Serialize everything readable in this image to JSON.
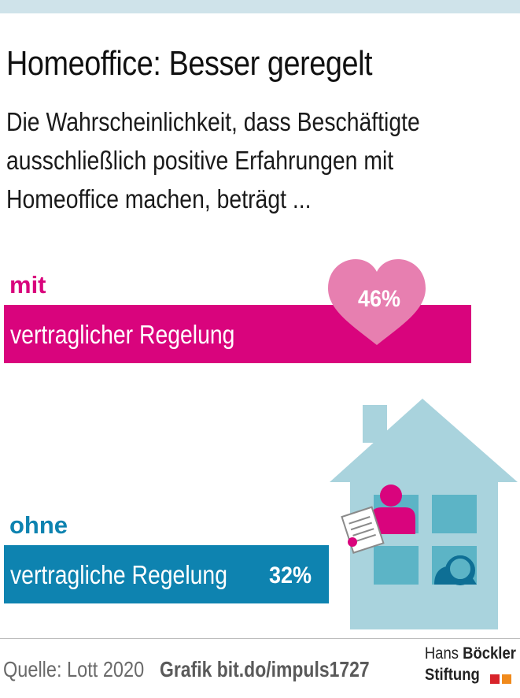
{
  "header": {
    "title": "Homeoffice: Besser geregelt",
    "subtitle_lines": [
      "Die Wahrscheinlichkeit, dass Beschäftigte",
      "ausschließlich positive Erfahrungen mit",
      "Homeoffice machen, beträgt ..."
    ]
  },
  "chart_data": {
    "type": "bar",
    "orientation": "horizontal",
    "unit": "%",
    "categories": [
      {
        "prefix": "mit",
        "label": "vertraglicher Regelung"
      },
      {
        "prefix": "ohne",
        "label": "vertragliche Regelung"
      }
    ],
    "values": [
      46,
      32
    ],
    "value_labels": [
      "46%",
      "32%"
    ],
    "colors": [
      "#d9047d",
      "#0e83b0"
    ],
    "heart_color": "#e77fb0",
    "house_color": "#a9d3dd",
    "window_color": "#5cb4c6",
    "figure_color": "#d9047d",
    "figure_dark_color": "#0e6f95",
    "xlim": [
      0,
      50
    ],
    "grid": false
  },
  "footer": {
    "source": "Quelle: Lott 2020",
    "grafik": "Grafik bit.do/impuls1727",
    "logo_line1_regular": "Hans",
    "logo_line1_bold": "Böckler",
    "logo_line2": "Stiftung",
    "logo_colors": [
      "#d8232a",
      "#f08a1c"
    ]
  }
}
